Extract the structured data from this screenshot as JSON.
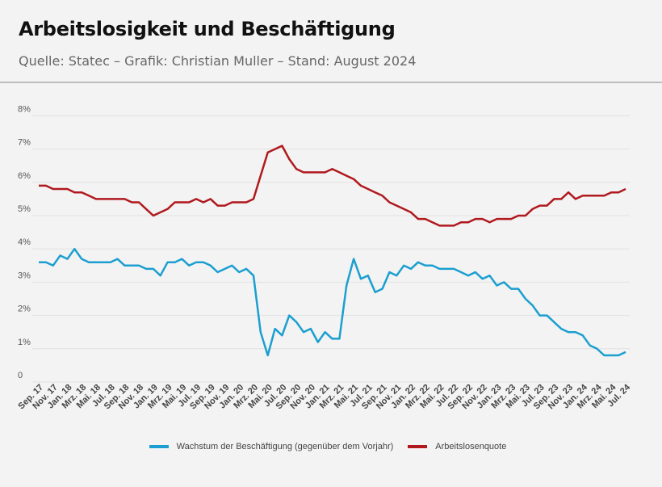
{
  "header": {
    "title": "Arbeitslosigkeit und Beschäftigung",
    "subtitle": "Quelle: Statec – Grafik: Christian Muller – Stand: August 2024"
  },
  "chart_data": {
    "type": "line",
    "title": "Arbeitslosigkeit und Beschäftigung",
    "frequency": "monthly",
    "x_range": [
      "Sep. 17",
      "Jul. 24"
    ],
    "x_tick_labels": [
      "Sep. 17",
      "Nov. 17",
      "Jan. 18",
      "Mrz. 18",
      "Mai. 18",
      "Jul. 18",
      "Sep. 18",
      "Nov. 18",
      "Jan. 19",
      "Mrz. 19",
      "Mai. 19",
      "Jul. 19",
      "Sep. 19",
      "Nov. 19",
      "Jan. 20",
      "Mrz. 20",
      "Mai. 20",
      "Jul. 20",
      "Sep. 20",
      "Nov. 20",
      "Jan. 21",
      "Mrz. 21",
      "Mai. 21",
      "Jul. 21",
      "Sep. 21",
      "Nov. 21",
      "Jan. 22",
      "Mrz. 22",
      "Mai. 22",
      "Jul. 22",
      "Sep. 22",
      "Nov. 22",
      "Jan. 23",
      "Mrz. 23",
      "Mai. 23",
      "Jul. 23",
      "Sep. 23",
      "Nov. 23",
      "Jan. 24",
      "Mrz. 24",
      "Mai. 24",
      "Jul. 24"
    ],
    "y_tick_labels": [
      "0",
      "1%",
      "2%",
      "3%",
      "4%",
      "5%",
      "6%",
      "7%",
      "8%"
    ],
    "ylim": [
      0,
      8
    ],
    "grid": true,
    "legend": "bottom",
    "series": [
      {
        "name": "Wachstum der Beschäftigung (gegenüber dem Vorjahr)",
        "color": "#1b9fd0",
        "values": [
          3.6,
          3.6,
          3.5,
          3.8,
          3.7,
          4.0,
          3.7,
          3.6,
          3.6,
          3.6,
          3.6,
          3.7,
          3.5,
          3.5,
          3.5,
          3.4,
          3.4,
          3.2,
          3.6,
          3.6,
          3.7,
          3.5,
          3.6,
          3.6,
          3.5,
          3.3,
          3.4,
          3.5,
          3.3,
          3.4,
          3.2,
          1.5,
          0.8,
          1.6,
          1.4,
          2.0,
          1.8,
          1.5,
          1.6,
          1.2,
          1.5,
          1.3,
          1.3,
          2.9,
          3.7,
          3.1,
          3.2,
          2.7,
          2.8,
          3.3,
          3.2,
          3.5,
          3.4,
          3.6,
          3.5,
          3.5,
          3.4,
          3.4,
          3.4,
          3.3,
          3.2,
          3.3,
          3.1,
          3.2,
          2.9,
          3.0,
          2.8,
          2.8,
          2.5,
          2.3,
          2.0,
          2.0,
          1.8,
          1.6,
          1.5,
          1.5,
          1.4,
          1.1,
          1.0,
          0.8,
          0.8,
          0.8,
          0.9
        ]
      },
      {
        "name": "Arbeitslosenquote",
        "color": "#b0191e",
        "values": [
          5.9,
          5.9,
          5.8,
          5.8,
          5.8,
          5.7,
          5.7,
          5.6,
          5.5,
          5.5,
          5.5,
          5.5,
          5.5,
          5.4,
          5.4,
          5.2,
          5.0,
          5.1,
          5.2,
          5.4,
          5.4,
          5.4,
          5.5,
          5.4,
          5.5,
          5.3,
          5.3,
          5.4,
          5.4,
          5.4,
          5.5,
          6.2,
          6.9,
          7.0,
          7.1,
          6.7,
          6.4,
          6.3,
          6.3,
          6.3,
          6.3,
          6.4,
          6.3,
          6.2,
          6.1,
          5.9,
          5.8,
          5.7,
          5.6,
          5.4,
          5.3,
          5.2,
          5.1,
          4.9,
          4.9,
          4.8,
          4.7,
          4.7,
          4.7,
          4.8,
          4.8,
          4.9,
          4.9,
          4.8,
          4.9,
          4.9,
          4.9,
          5.0,
          5.0,
          5.2,
          5.3,
          5.3,
          5.5,
          5.5,
          5.7,
          5.5,
          5.6,
          5.6,
          5.6,
          5.6,
          5.7,
          5.7,
          5.8
        ]
      }
    ]
  }
}
